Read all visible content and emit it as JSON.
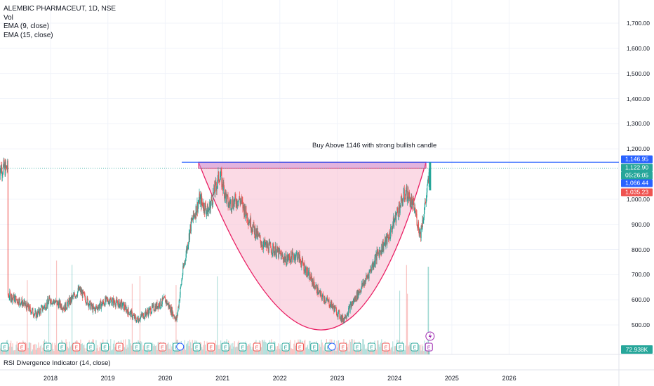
{
  "legend": {
    "title": "ALEMBIC PHARMACEUT, 1D, NSE",
    "vol": "Vol",
    "ema9": "EMA (9, close)",
    "ema15": "EMA (15, close)"
  },
  "annotation": "Buy Above 1146 with strong bullish candle",
  "sub_indicator": "RSI Divergence Indicator (14, close)",
  "price_axis": {
    "ticks": [
      "1,700.00",
      "1,600.00",
      "1,500.00",
      "1,400.00",
      "1,300.00",
      "1,200.00",
      "1,000.00",
      "900.00",
      "800.00",
      "700.00",
      "600.00",
      "500.00"
    ]
  },
  "price_tags": {
    "resistance": "1,146.95",
    "last": "1,122.90",
    "countdown": "05:26:05",
    "level_blue": "1,066.44",
    "level_red": "1,035.23",
    "volume": "72.938K"
  },
  "time_axis": {
    "ticks": [
      "2018",
      "2019",
      "2020",
      "2021",
      "2022",
      "2023",
      "2024",
      "2025",
      "2026"
    ]
  },
  "colors": {
    "up": "#26a69a",
    "down": "#ef5350",
    "resistance_line": "#2962ff",
    "cup_fill": "#f8bbd0",
    "cup_stroke": "#e91e63",
    "box_fill": "#ce93d8"
  },
  "chart_data": {
    "type": "candlestick",
    "symbol": "ALEMBIC PHARMACEUT",
    "interval": "1D",
    "exchange": "NSE",
    "resistance_level": 1146.95,
    "last_price": 1122.9,
    "ylim": [
      450,
      1760
    ],
    "close_path": [
      {
        "x": 2017.25,
        "y": 620
      },
      {
        "x": 2017.5,
        "y": 590
      },
      {
        "x": 2017.75,
        "y": 540
      },
      {
        "x": 2018.0,
        "y": 600
      },
      {
        "x": 2018.25,
        "y": 570
      },
      {
        "x": 2018.5,
        "y": 640
      },
      {
        "x": 2018.75,
        "y": 560
      },
      {
        "x": 2019.0,
        "y": 600
      },
      {
        "x": 2019.25,
        "y": 580
      },
      {
        "x": 2019.5,
        "y": 520
      },
      {
        "x": 2019.75,
        "y": 560
      },
      {
        "x": 2020.0,
        "y": 600
      },
      {
        "x": 2020.2,
        "y": 520
      },
      {
        "x": 2020.3,
        "y": 700
      },
      {
        "x": 2020.45,
        "y": 900
      },
      {
        "x": 2020.6,
        "y": 1000
      },
      {
        "x": 2020.75,
        "y": 950
      },
      {
        "x": 2020.95,
        "y": 1100
      },
      {
        "x": 2021.1,
        "y": 980
      },
      {
        "x": 2021.3,
        "y": 1000
      },
      {
        "x": 2021.5,
        "y": 900
      },
      {
        "x": 2021.7,
        "y": 820
      },
      {
        "x": 2021.9,
        "y": 800
      },
      {
        "x": 2022.1,
        "y": 760
      },
      {
        "x": 2022.3,
        "y": 780
      },
      {
        "x": 2022.5,
        "y": 700
      },
      {
        "x": 2022.7,
        "y": 620
      },
      {
        "x": 2022.9,
        "y": 580
      },
      {
        "x": 2023.1,
        "y": 520
      },
      {
        "x": 2023.3,
        "y": 600
      },
      {
        "x": 2023.5,
        "y": 680
      },
      {
        "x": 2023.7,
        "y": 780
      },
      {
        "x": 2023.9,
        "y": 850
      },
      {
        "x": 2024.05,
        "y": 950
      },
      {
        "x": 2024.2,
        "y": 1030
      },
      {
        "x": 2024.35,
        "y": 960
      },
      {
        "x": 2024.45,
        "y": 860
      },
      {
        "x": 2024.55,
        "y": 1000
      },
      {
        "x": 2024.62,
        "y": 1122.9
      }
    ]
  }
}
